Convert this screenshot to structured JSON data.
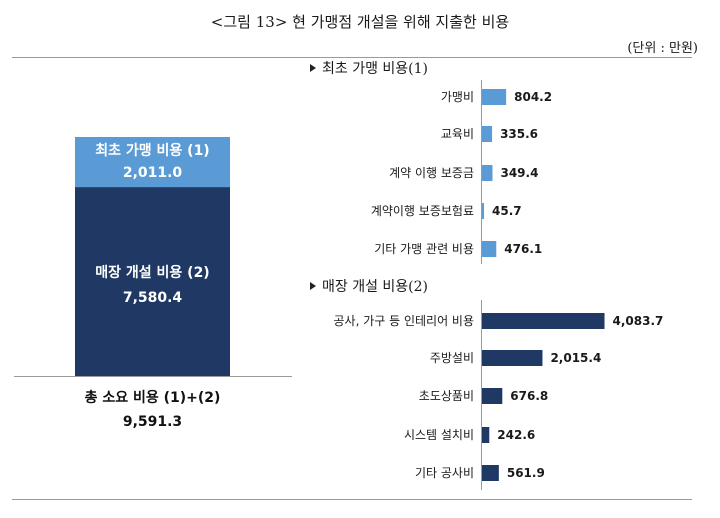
{
  "header": {
    "title": "<그림 13> 현 가맹점 개설을 위해 지출한 비용",
    "unit": "(단위 : 만원)"
  },
  "sections": {
    "initial_label": "최초 가맹 비용(1)",
    "store_label": "매장 개설 비용(2)"
  },
  "stacked": {
    "top_segment": {
      "label": "최초 가맹 비용 (1)",
      "value_text": "2,011.0"
    },
    "bottom_segment": {
      "label": "매장 개설 비용 (2)",
      "value_text": "7,580.4"
    },
    "total_label": "총 소요 비용 (1)+(2)",
    "total_value": "9,591.3"
  },
  "colors": {
    "initial": "#5b9bd5",
    "store": "#1f3864",
    "axis": "#9a9a9a"
  },
  "chart_data": [
    {
      "type": "bar",
      "orientation": "vertical-stacked",
      "categories": [
        "총 소요 비용 (1)+(2)"
      ],
      "series": [
        {
          "name": "최초 가맹 비용 (1)",
          "values": [
            2011.0
          ]
        },
        {
          "name": "매장 개설 비용 (2)",
          "values": [
            7580.4
          ]
        }
      ],
      "total": 9591.3
    },
    {
      "type": "bar",
      "orientation": "horizontal",
      "title": "최초 가맹 비용(1)",
      "categories": [
        "가맹비",
        "교육비",
        "계약 이행 보증금",
        "계약이행 보증보험료",
        "기타 가맹 관련 비용"
      ],
      "values": [
        804.2,
        335.6,
        349.4,
        45.7,
        476.1
      ],
      "value_labels": [
        "804.2",
        "335.6",
        "349.4",
        "45.7",
        "476.1"
      ]
    },
    {
      "type": "bar",
      "orientation": "horizontal",
      "title": "매장 개설 비용(2)",
      "categories": [
        "공사, 가구 등 인테리어 비용",
        "주방설비",
        "초도상품비",
        "시스템 설치비",
        "기타 공사비"
      ],
      "values": [
        4083.7,
        2015.4,
        676.8,
        242.6,
        561.9
      ],
      "value_labels": [
        "4,083.7",
        "2,015.4",
        "676.8",
        "242.6",
        "561.9"
      ]
    }
  ]
}
